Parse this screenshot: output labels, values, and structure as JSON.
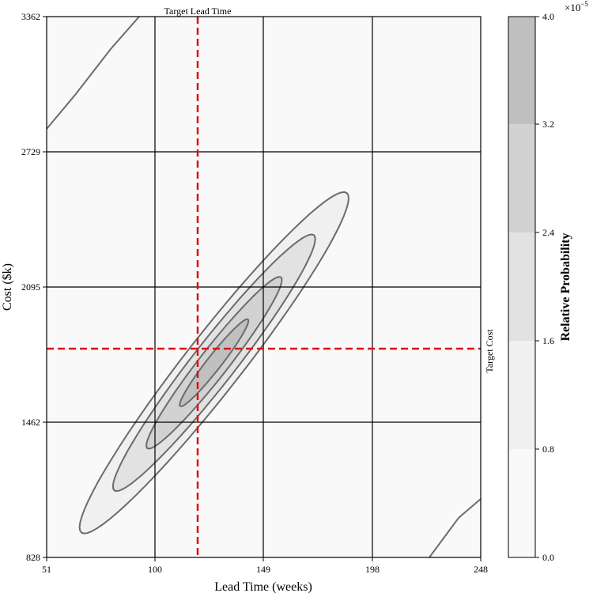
{
  "chart_data": {
    "type": "contour",
    "title": "",
    "xlabel": "Lead Time (weeks)",
    "ylabel": "Cost ($k)",
    "xlim": [
      51,
      248
    ],
    "ylim": [
      828,
      3362
    ],
    "xticks": [
      "51",
      "100",
      "149",
      "198",
      "248"
    ],
    "yticks": [
      "828",
      "1462",
      "2095",
      "2729",
      "3362"
    ],
    "grid": true,
    "target_lead_time": {
      "label": "Target Lead Time",
      "value": 120
    },
    "target_cost": {
      "label": "Target Cost",
      "value": 1800
    },
    "contour_levels": [
      {
        "level": 0.8,
        "fill": "#f0f0f0"
      },
      {
        "level": 1.6,
        "fill": "#e2e2e2"
      },
      {
        "level": 2.4,
        "fill": "#d2d2d2"
      },
      {
        "level": 3.2,
        "fill": "#c0c0c0"
      }
    ],
    "distribution": {
      "center": [
        127,
        1740
      ],
      "major_axis_angle_deg": 52,
      "extent_level_0_8": 0.94,
      "extent_level_3_2": 0.24
    },
    "colorbar": {
      "label": "Relative Probability",
      "multiplier": "×10",
      "exponent": "−5",
      "ticks": [
        "0.0",
        "0.8",
        "1.6",
        "2.4",
        "3.2",
        "4.0"
      ],
      "band_colors": [
        "#f9f9f9",
        "#f0f0f0",
        "#e2e2e2",
        "#d2d2d2",
        "#c0c0c0"
      ]
    }
  }
}
